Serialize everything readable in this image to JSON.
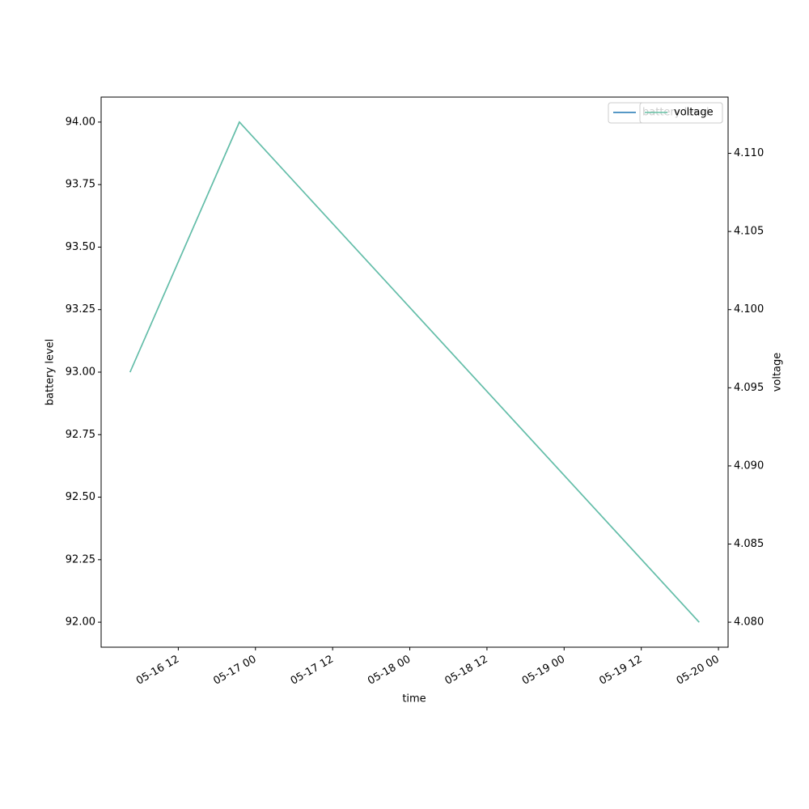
{
  "chart_data": {
    "type": "line",
    "x_label": "time",
    "y_label": "battery level",
    "y2_label": "voltage",
    "x": [
      "05-16 04:30",
      "05-16 21:30",
      "05-19 21:00"
    ],
    "series": [
      {
        "name": "battery level",
        "color": "#1f77b4",
        "values": [
          93,
          94,
          92
        ]
      },
      {
        "name": "voltage",
        "color": "#66c2a5",
        "axis": "y2",
        "values": [
          4.096,
          4.112,
          4.08
        ]
      }
    ],
    "xlim": [
      "05-16 00:00",
      "05-20 01:30"
    ],
    "xticks": [
      {
        "value": "05-16 12:00",
        "label": "05-16 12"
      },
      {
        "value": "05-17 00:00",
        "label": "05-17 00"
      },
      {
        "value": "05-17 12:00",
        "label": "05-17 12"
      },
      {
        "value": "05-18 00:00",
        "label": "05-18 00"
      },
      {
        "value": "05-18 12:00",
        "label": "05-18 12"
      },
      {
        "value": "05-19 00:00",
        "label": "05-19 00"
      },
      {
        "value": "05-19 12:00",
        "label": "05-19 12"
      },
      {
        "value": "05-20 00:00",
        "label": "05-20 00"
      }
    ],
    "ylim": [
      91.9,
      94.1
    ],
    "yticks": [
      {
        "value": 92,
        "label": "92.00"
      },
      {
        "value": 92.25,
        "label": "92.25"
      },
      {
        "value": 92.5,
        "label": "92.50"
      },
      {
        "value": 92.75,
        "label": "92.75"
      },
      {
        "value": 93,
        "label": "93.00"
      },
      {
        "value": 93.25,
        "label": "93.25"
      },
      {
        "value": 93.5,
        "label": "93.50"
      },
      {
        "value": 93.75,
        "label": "93.75"
      },
      {
        "value": 94,
        "label": "94.00"
      }
    ],
    "y2lim": [
      4.0784,
      4.1136
    ],
    "y2ticks": [
      {
        "value": 4.08,
        "label": "4.080"
      },
      {
        "value": 4.085,
        "label": "4.085"
      },
      {
        "value": 4.09,
        "label": "4.090"
      },
      {
        "value": 4.095,
        "label": "4.095"
      },
      {
        "value": 4.1,
        "label": "4.100"
      },
      {
        "value": 4.105,
        "label": "4.105"
      },
      {
        "value": 4.11,
        "label": "4.110"
      }
    ],
    "legend": "upper right"
  }
}
